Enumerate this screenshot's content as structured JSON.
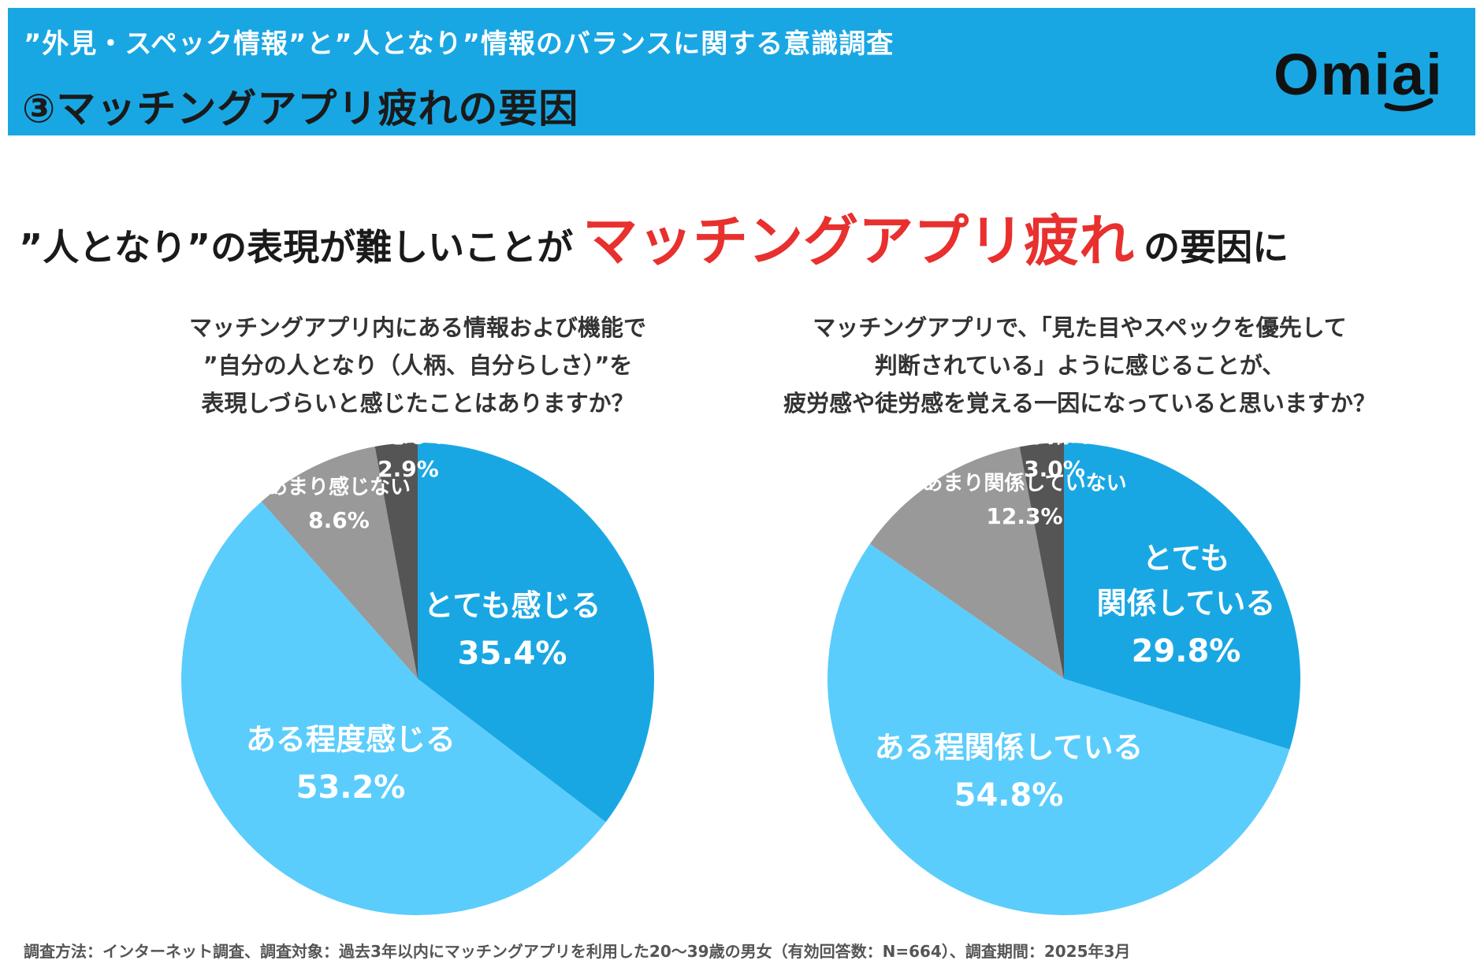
{
  "header": {
    "subtitle": "”外見・スペック情報”と”人となり”情報のバランスに関する意識調査",
    "title": "③マッチングアプリ疲れの要因",
    "logo_text": "Omiai"
  },
  "headline": {
    "part1": "”人となり”の表現が難しいことが",
    "emphasis": "マッチングアプリ疲れ",
    "part2": "の要因に",
    "emphasis_color": "#e8302e"
  },
  "colors": {
    "header_bg": "#19a7e4",
    "strong_blue": "#19a7e4",
    "light_blue": "#5bcdfc",
    "gray": "#999999",
    "dark_gray": "#555555"
  },
  "chart_data": [
    {
      "type": "pie",
      "title_lines": [
        "マッチングアプリ内にある情報および機能で",
        "”自分の人となり（人柄、自分らしさ）”を",
        "表現しづらいと感じたことはありますか？"
      ],
      "slices": [
        {
          "label": "とても感じる",
          "label_lines": [
            "とても感じる"
          ],
          "value": 35.4,
          "value_text": "35.4%",
          "color": "#19a7e4"
        },
        {
          "label": "ある程度感じる",
          "label_lines": [
            "ある程度感じる"
          ],
          "value": 53.2,
          "value_text": "53.2%",
          "color": "#5bcdfc"
        },
        {
          "label": "あまり感じない",
          "label_lines": [
            "あまり感じない"
          ],
          "value": 8.6,
          "value_text": "8.6%",
          "color": "#999999"
        },
        {
          "label": "全く感じない",
          "label_lines": [
            "全く感じない"
          ],
          "value": 2.9,
          "value_text": "2.9%",
          "color": "#555555"
        }
      ]
    },
    {
      "type": "pie",
      "title_lines": [
        "マッチングアプリで、「見た目やスペックを優先して",
        "判断されている」ように感じることが、",
        "疲労感や徒労感を覚える一因になっていると思いますか？"
      ],
      "slices": [
        {
          "label": "とても関係している",
          "label_lines": [
            "とても",
            "関係している"
          ],
          "value": 29.8,
          "value_text": "29.8%",
          "color": "#19a7e4"
        },
        {
          "label": "ある程関係している",
          "label_lines": [
            "ある程関係している"
          ],
          "value": 54.8,
          "value_text": "54.8%",
          "color": "#5bcdfc"
        },
        {
          "label": "あまり関係していない",
          "label_lines": [
            "あまり関係していない"
          ],
          "value": 12.3,
          "value_text": "12.3%",
          "color": "#999999"
        },
        {
          "label": "全く関係ない",
          "label_lines": [
            "全く関係ない"
          ],
          "value": 3.0,
          "value_text": "3.0%",
          "color": "#555555"
        }
      ]
    }
  ],
  "footnote": "調査方法：インターネット調査、調査対象：過去3年以内にマッチングアプリを利用した20～39歳の男女（有効回答数：N=664）、調査期間：2025年3月"
}
